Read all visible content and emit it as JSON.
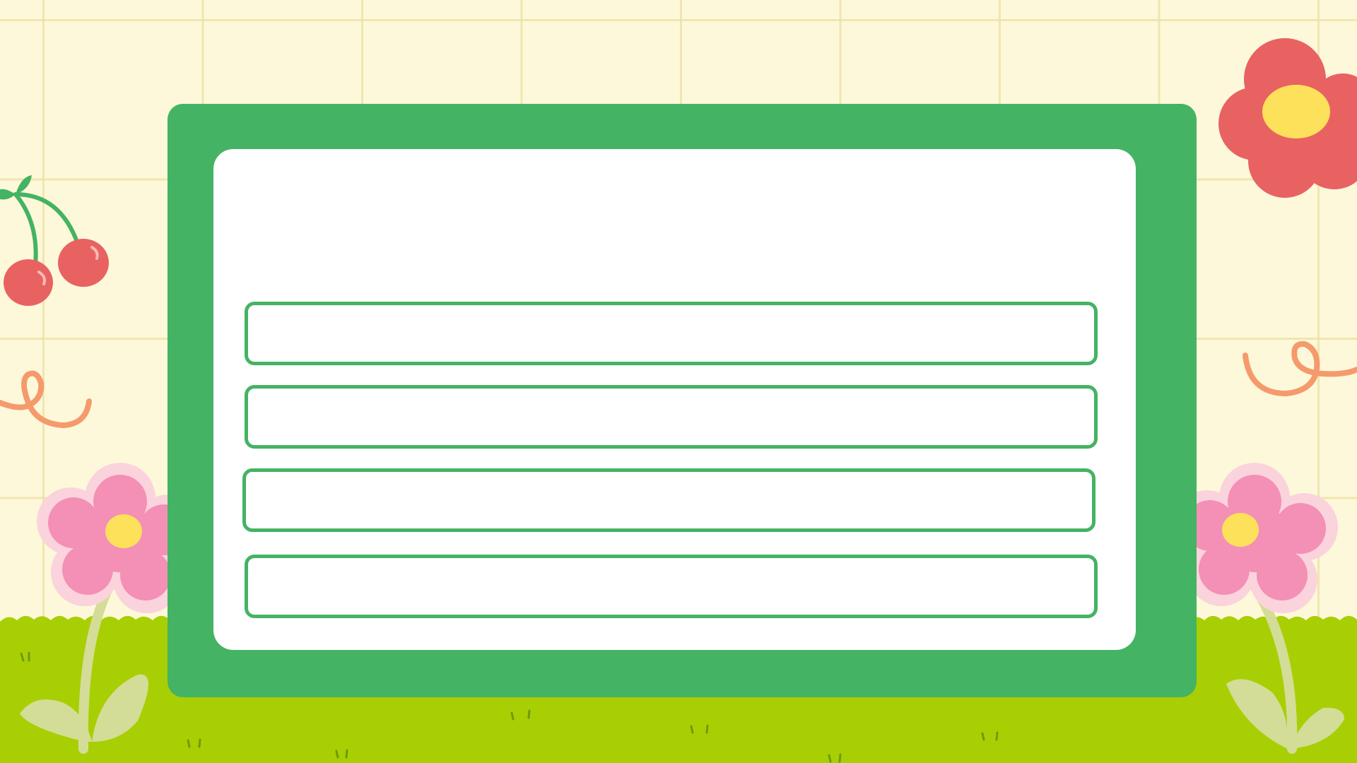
{
  "board": {
    "title": "",
    "options": [
      {
        "label": ""
      },
      {
        "label": ""
      },
      {
        "label": ""
      },
      {
        "label": ""
      }
    ]
  },
  "colors": {
    "background": "#fdf8da",
    "grid_line": "#ece0a0",
    "board_green": "#44b363",
    "panel_white": "#ffffff",
    "grass": "#a8cf04",
    "red_flower": "#e96262",
    "flower_center": "#fde15b",
    "pink_flower": "#f48fb6",
    "pink_outline": "#fbd3dc",
    "cherry": "#e96262",
    "stem_pale": "#d4dd97",
    "squiggle": "#f59a6c"
  },
  "icons": [
    "cherry-icon",
    "red-flower-icon",
    "squiggle-icon",
    "pink-flower-icon",
    "grass-tuft-icon"
  ]
}
